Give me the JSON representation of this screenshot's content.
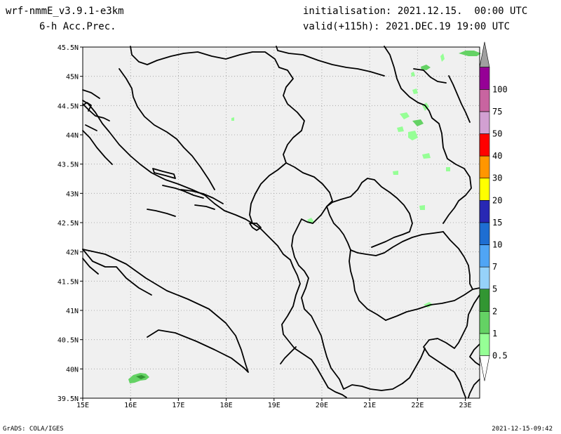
{
  "header": {
    "model": "wrf-nmmE_v3.9.1-e3km",
    "field": "6-h Acc.Prec.",
    "init": "initialisation: 2021.12.15.  00:00 UTC",
    "valid": "valid(+115h): 2021.DEC.19 19:00 UTC"
  },
  "map": {
    "background_color": "#f0f0f0",
    "lat_labels": [
      "45.5N",
      "45N",
      "44.5N",
      "44N",
      "43.5N",
      "43N",
      "42.5N",
      "42N",
      "41.5N",
      "41N",
      "40.5N",
      "40N",
      "39.5N"
    ],
    "lat_values": [
      45.5,
      45,
      44.5,
      44,
      43.5,
      43,
      42.5,
      42,
      41.5,
      41,
      40.5,
      40,
      39.5
    ],
    "lon_labels": [
      "15E",
      "16E",
      "17E",
      "18E",
      "19E",
      "20E",
      "21E",
      "22E",
      "23E"
    ],
    "lon_values": [
      15,
      16,
      17,
      18,
      19,
      20,
      21,
      22,
      23
    ],
    "lon_range": [
      15,
      23.3
    ],
    "lat_range": [
      39.5,
      45.5
    ]
  },
  "colorbar": {
    "labels": [
      "0.5",
      "1",
      "2",
      "5",
      "7",
      "10",
      "15",
      "20",
      "30",
      "40",
      "50",
      "75",
      "100"
    ],
    "colors": [
      "#96ff96",
      "#64d264",
      "#329632",
      "#96d2fa",
      "#50a5f5",
      "#1e6ed2",
      "#2828b4",
      "#ffff00",
      "#ff9600",
      "#ff0000",
      "#d2a0d2",
      "#c864a0",
      "#960096"
    ],
    "top_color": "#a0a0a0"
  },
  "footer": {
    "left": "GrADS: COLA/IGES",
    "right": "2021-12-15-09:42"
  }
}
